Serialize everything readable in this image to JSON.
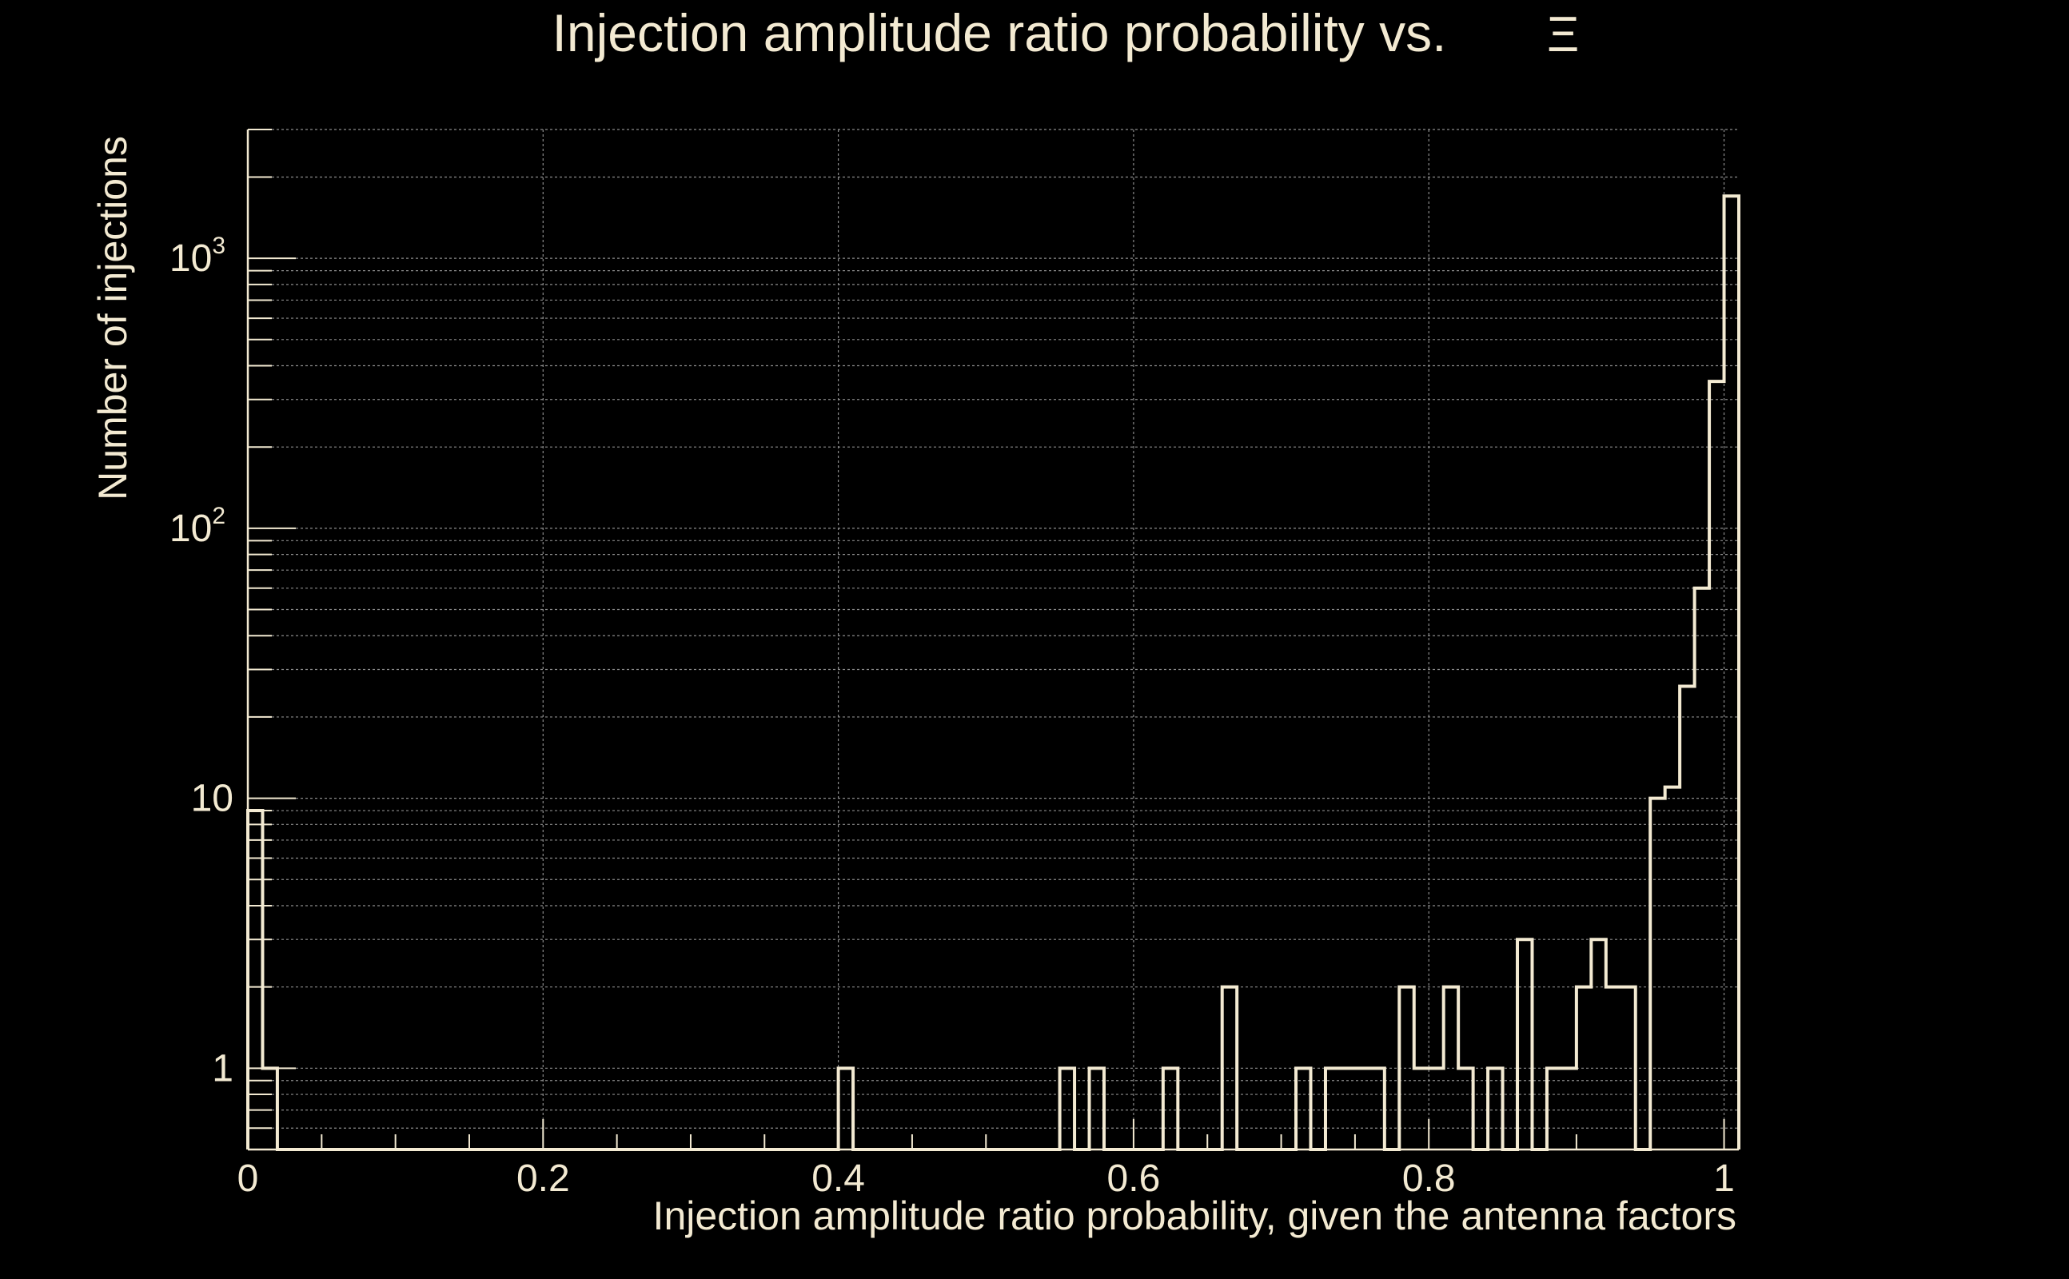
{
  "colors": {
    "background": "#000000",
    "foreground": "#f3ead2",
    "grid": "#8c8c8c"
  },
  "chart_data": {
    "type": "histogram",
    "title": "Injection amplitude ratio probability vs.",
    "title_symbol": "Ξ",
    "xlabel": "Injection amplitude ratio probability, given the antenna factors",
    "ylabel": "Number of injections",
    "xlim": [
      0,
      1.01
    ],
    "ylim": [
      0.5,
      3000
    ],
    "yscale": "log",
    "grid": true,
    "x_ticks": [
      {
        "v": 0,
        "label": "0"
      },
      {
        "v": 0.2,
        "label": "0.2"
      },
      {
        "v": 0.4,
        "label": "0.4"
      },
      {
        "v": 0.6,
        "label": "0.6"
      },
      {
        "v": 0.8,
        "label": "0.8"
      },
      {
        "v": 1.0,
        "label": "1"
      }
    ],
    "y_ticks": [
      {
        "v": 1,
        "base": "1",
        "exp": ""
      },
      {
        "v": 10,
        "base": "10",
        "exp": ""
      },
      {
        "v": 100,
        "base": "10",
        "exp": "2"
      },
      {
        "v": 1000,
        "base": "10",
        "exp": "3"
      }
    ],
    "bin_width": 0.01,
    "bins": [
      {
        "x": 0.0,
        "count": 9
      },
      {
        "x": 0.01,
        "count": 1
      },
      {
        "x": 0.4,
        "count": 1
      },
      {
        "x": 0.55,
        "count": 1
      },
      {
        "x": 0.57,
        "count": 1
      },
      {
        "x": 0.62,
        "count": 1
      },
      {
        "x": 0.66,
        "count": 2
      },
      {
        "x": 0.71,
        "count": 1
      },
      {
        "x": 0.73,
        "count": 1
      },
      {
        "x": 0.74,
        "count": 1
      },
      {
        "x": 0.75,
        "count": 1
      },
      {
        "x": 0.76,
        "count": 1
      },
      {
        "x": 0.78,
        "count": 2
      },
      {
        "x": 0.79,
        "count": 1
      },
      {
        "x": 0.8,
        "count": 1
      },
      {
        "x": 0.81,
        "count": 2
      },
      {
        "x": 0.82,
        "count": 1
      },
      {
        "x": 0.84,
        "count": 1
      },
      {
        "x": 0.86,
        "count": 3
      },
      {
        "x": 0.88,
        "count": 1
      },
      {
        "x": 0.89,
        "count": 1
      },
      {
        "x": 0.9,
        "count": 2
      },
      {
        "x": 0.91,
        "count": 3
      },
      {
        "x": 0.92,
        "count": 2
      },
      {
        "x": 0.93,
        "count": 2
      },
      {
        "x": 0.95,
        "count": 10
      },
      {
        "x": 0.96,
        "count": 11
      },
      {
        "x": 0.97,
        "count": 26
      },
      {
        "x": 0.98,
        "count": 60
      },
      {
        "x": 0.99,
        "count": 350
      },
      {
        "x": 1.0,
        "count": 1700
      }
    ]
  }
}
